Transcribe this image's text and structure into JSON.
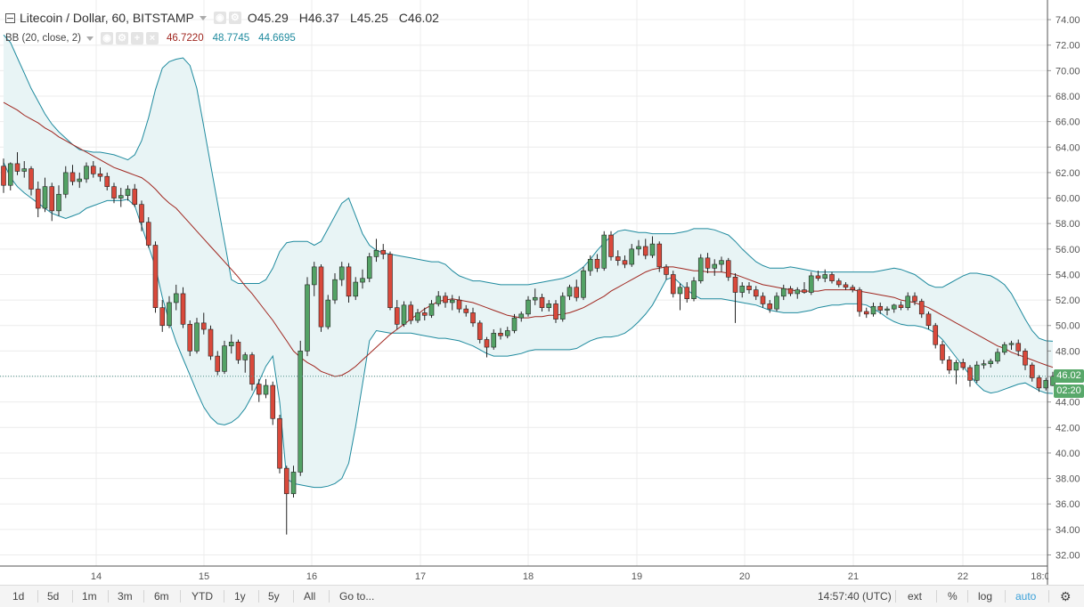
{
  "header": {
    "symbol_title": "Litecoin / Dollar, 60, BITSTAMP",
    "ohlc": [
      {
        "label": "O",
        "value": "45.29"
      },
      {
        "label": "H",
        "value": "46.37"
      },
      {
        "label": "L",
        "value": "45.25"
      },
      {
        "label": "C",
        "value": "46.02"
      }
    ],
    "indicator": {
      "name": "BB (20, close, 2)",
      "basis": "46.7220",
      "upper": "48.7745",
      "lower": "44.6695"
    }
  },
  "price_tag": {
    "last_price": "46.02",
    "countdown": "02:20"
  },
  "bottom_toolbar": {
    "ranges": [
      "1d",
      "5d",
      "1m",
      "3m",
      "6m",
      "YTD",
      "1y",
      "5y",
      "All"
    ],
    "goto": "Go to...",
    "time": "14:57:40 (UTC)",
    "ext": "ext",
    "percent": "%",
    "log": "log",
    "auto": "auto"
  },
  "colors": {
    "up": "#53a265",
    "down": "#d9493b",
    "band": "#1e8a9e",
    "basis": "#a0261f",
    "band_fill": "#e8f4f5",
    "grid": "#ececec",
    "last_line": "#4a8f86",
    "auto_active": "#3aa0d8"
  },
  "chart_data": {
    "type": "candlestick",
    "title": "Litecoin / Dollar, 60, BITSTAMP",
    "x_ticks": [
      "14",
      "15",
      "16",
      "17",
      "18",
      "19",
      "20",
      "21",
      "22",
      "18:0"
    ],
    "y_ticks": [
      "32.00",
      "34.00",
      "36.00",
      "38.00",
      "40.00",
      "42.00",
      "44.00",
      "46.00",
      "48.00",
      "50.00",
      "52.00",
      "54.00",
      "56.00",
      "58.00",
      "60.00",
      "62.00",
      "64.00",
      "66.00",
      "68.00",
      "70.00",
      "72.00",
      "74.00"
    ],
    "ylim": [
      31,
      74.5
    ],
    "last_price": 46.02,
    "candles": [
      [
        62.5,
        63.1,
        60.4,
        61.0
      ],
      [
        61.0,
        62.8,
        60.6,
        62.7
      ],
      [
        62.7,
        63.6,
        61.8,
        62.1
      ],
      [
        62.1,
        62.9,
        61.6,
        62.3
      ],
      [
        62.3,
        62.5,
        60.2,
        60.7
      ],
      [
        60.7,
        61.3,
        58.5,
        59.2
      ],
      [
        59.2,
        61.6,
        58.9,
        60.9
      ],
      [
        60.9,
        61.2,
        58.2,
        59.0
      ],
      [
        59.0,
        61.0,
        58.6,
        60.3
      ],
      [
        60.3,
        62.5,
        60.0,
        62.0
      ],
      [
        62.0,
        62.6,
        61.0,
        61.3
      ],
      [
        61.3,
        62.0,
        60.8,
        61.5
      ],
      [
        61.5,
        62.8,
        61.2,
        62.5
      ],
      [
        62.5,
        62.9,
        61.6,
        61.9
      ],
      [
        61.9,
        62.4,
        61.3,
        61.7
      ],
      [
        61.7,
        62.0,
        60.6,
        60.9
      ],
      [
        60.9,
        61.2,
        59.6,
        60.0
      ],
      [
        60.0,
        60.8,
        59.3,
        60.2
      ],
      [
        60.2,
        61.0,
        59.8,
        60.7
      ],
      [
        60.7,
        61.1,
        59.3,
        59.5
      ],
      [
        59.5,
        59.8,
        57.4,
        58.1
      ],
      [
        58.1,
        58.5,
        56.1,
        56.3
      ],
      [
        56.3,
        56.6,
        51.0,
        51.4
      ],
      [
        51.4,
        52.0,
        49.5,
        50.0
      ],
      [
        50.0,
        52.3,
        49.8,
        51.8
      ],
      [
        51.8,
        53.2,
        51.2,
        52.5
      ],
      [
        52.5,
        53.0,
        49.8,
        50.1
      ],
      [
        50.1,
        50.4,
        47.6,
        48.0
      ],
      [
        48.0,
        50.6,
        47.8,
        50.2
      ],
      [
        50.2,
        51.0,
        49.3,
        49.7
      ],
      [
        49.7,
        50.0,
        47.3,
        47.6
      ],
      [
        47.6,
        48.0,
        46.1,
        46.4
      ],
      [
        46.4,
        48.8,
        46.2,
        48.4
      ],
      [
        48.4,
        49.3,
        47.8,
        48.7
      ],
      [
        48.7,
        48.9,
        47.0,
        47.3
      ],
      [
        47.3,
        47.9,
        46.3,
        47.7
      ],
      [
        47.7,
        47.9,
        44.9,
        45.4
      ],
      [
        45.4,
        45.8,
        44.0,
        44.6
      ],
      [
        44.6,
        45.8,
        44.3,
        45.3
      ],
      [
        45.3,
        45.6,
        42.2,
        42.7
      ],
      [
        42.7,
        43.0,
        38.4,
        38.8
      ],
      [
        38.8,
        39.0,
        33.6,
        36.8
      ],
      [
        36.8,
        39.0,
        36.5,
        38.5
      ],
      [
        38.5,
        48.8,
        38.2,
        48.0
      ],
      [
        48.0,
        53.8,
        47.6,
        53.2
      ],
      [
        53.2,
        55.0,
        52.3,
        54.6
      ],
      [
        54.6,
        54.8,
        49.5,
        49.9
      ],
      [
        49.9,
        52.4,
        49.7,
        52.0
      ],
      [
        52.0,
        54.1,
        51.7,
        53.6
      ],
      [
        53.6,
        55.0,
        53.1,
        54.6
      ],
      [
        54.6,
        54.9,
        51.8,
        52.3
      ],
      [
        52.3,
        53.8,
        52.0,
        53.4
      ],
      [
        53.4,
        54.4,
        52.9,
        53.7
      ],
      [
        53.7,
        55.7,
        53.4,
        55.4
      ],
      [
        55.4,
        56.8,
        55.0,
        55.9
      ],
      [
        55.9,
        56.4,
        55.2,
        55.6
      ],
      [
        55.6,
        55.8,
        51.2,
        51.4
      ],
      [
        51.4,
        52.0,
        49.7,
        50.1
      ],
      [
        50.1,
        51.9,
        49.9,
        51.6
      ],
      [
        51.6,
        51.9,
        50.1,
        50.4
      ],
      [
        50.4,
        51.3,
        50.2,
        51.0
      ],
      [
        51.0,
        51.4,
        50.4,
        50.8
      ],
      [
        50.8,
        52.0,
        50.6,
        51.7
      ],
      [
        51.7,
        52.7,
        51.5,
        52.3
      ],
      [
        52.3,
        52.6,
        51.4,
        51.8
      ],
      [
        51.8,
        52.4,
        51.2,
        52.0
      ],
      [
        52.0,
        52.3,
        51.0,
        51.3
      ],
      [
        51.3,
        51.6,
        50.7,
        51.0
      ],
      [
        51.0,
        51.4,
        49.9,
        50.2
      ],
      [
        50.2,
        50.4,
        48.6,
        48.9
      ],
      [
        48.9,
        49.1,
        47.5,
        48.3
      ],
      [
        48.3,
        49.7,
        48.1,
        49.4
      ],
      [
        49.4,
        49.8,
        48.9,
        49.2
      ],
      [
        49.2,
        49.9,
        49.0,
        49.6
      ],
      [
        49.6,
        50.9,
        49.4,
        50.6
      ],
      [
        50.6,
        51.1,
        50.3,
        50.9
      ],
      [
        50.9,
        52.3,
        50.7,
        52.0
      ],
      [
        52.0,
        52.9,
        51.6,
        52.2
      ],
      [
        52.2,
        52.5,
        51.1,
        51.4
      ],
      [
        51.4,
        52.0,
        51.1,
        51.7
      ],
      [
        51.7,
        52.0,
        50.2,
        50.5
      ],
      [
        50.5,
        52.6,
        50.3,
        52.3
      ],
      [
        52.3,
        53.2,
        52.0,
        53.0
      ],
      [
        53.0,
        53.6,
        51.9,
        52.2
      ],
      [
        52.2,
        54.6,
        52.0,
        54.3
      ],
      [
        54.3,
        55.5,
        53.9,
        55.2
      ],
      [
        55.2,
        55.6,
        54.2,
        54.5
      ],
      [
        54.5,
        57.4,
        54.3,
        57.1
      ],
      [
        57.1,
        57.4,
        55.1,
        55.4
      ],
      [
        55.4,
        55.9,
        54.7,
        55.1
      ],
      [
        55.1,
        55.5,
        54.5,
        54.8
      ],
      [
        54.8,
        56.4,
        54.6,
        56.0
      ],
      [
        56.0,
        56.7,
        55.5,
        56.2
      ],
      [
        56.2,
        56.8,
        55.2,
        55.5
      ],
      [
        55.5,
        57.0,
        55.3,
        56.4
      ],
      [
        56.4,
        56.6,
        54.2,
        54.6
      ],
      [
        54.6,
        54.8,
        53.6,
        54.0
      ],
      [
        54.0,
        54.3,
        52.2,
        52.5
      ],
      [
        52.5,
        53.3,
        51.2,
        53.0
      ],
      [
        53.0,
        53.4,
        51.8,
        52.1
      ],
      [
        52.1,
        53.8,
        51.9,
        53.5
      ],
      [
        53.5,
        55.6,
        53.3,
        55.3
      ],
      [
        55.3,
        55.7,
        54.1,
        54.5
      ],
      [
        54.5,
        55.2,
        53.9,
        54.8
      ],
      [
        54.8,
        55.4,
        54.2,
        55.1
      ],
      [
        55.1,
        55.3,
        53.5,
        53.8
      ],
      [
        53.8,
        54.1,
        50.2,
        52.6
      ],
      [
        52.6,
        53.4,
        52.2,
        53.1
      ],
      [
        53.1,
        53.4,
        52.5,
        52.8
      ],
      [
        52.8,
        53.1,
        52.0,
        52.3
      ],
      [
        52.3,
        52.6,
        51.4,
        51.7
      ],
      [
        51.7,
        52.0,
        51.0,
        51.3
      ],
      [
        51.3,
        52.6,
        51.1,
        52.3
      ],
      [
        52.3,
        53.2,
        52.0,
        52.9
      ],
      [
        52.9,
        53.1,
        52.3,
        52.5
      ],
      [
        52.5,
        53.0,
        52.1,
        52.8
      ],
      [
        52.8,
        53.4,
        52.5,
        52.6
      ],
      [
        52.6,
        54.2,
        52.4,
        53.9
      ],
      [
        53.9,
        54.3,
        53.5,
        53.7
      ],
      [
        53.7,
        54.4,
        53.4,
        54.0
      ],
      [
        54.0,
        54.2,
        53.3,
        53.5
      ],
      [
        53.5,
        53.7,
        53.0,
        53.2
      ],
      [
        53.2,
        53.4,
        52.8,
        53.0
      ],
      [
        53.0,
        53.2,
        52.6,
        52.8
      ],
      [
        52.8,
        53.0,
        50.7,
        51.1
      ],
      [
        51.1,
        51.4,
        50.6,
        50.9
      ],
      [
        50.9,
        51.8,
        50.7,
        51.5
      ],
      [
        51.5,
        51.8,
        50.9,
        51.2
      ],
      [
        51.2,
        51.5,
        50.8,
        51.3
      ],
      [
        51.3,
        51.7,
        51.0,
        51.6
      ],
      [
        51.6,
        51.9,
        51.2,
        51.4
      ],
      [
        51.4,
        52.6,
        51.2,
        52.3
      ],
      [
        52.3,
        52.6,
        51.6,
        51.9
      ],
      [
        51.9,
        52.1,
        50.6,
        50.9
      ],
      [
        50.9,
        51.1,
        49.7,
        50.0
      ],
      [
        50.0,
        50.2,
        48.2,
        48.5
      ],
      [
        48.5,
        48.8,
        47.0,
        47.3
      ],
      [
        47.3,
        47.6,
        46.2,
        46.5
      ],
      [
        46.5,
        47.3,
        45.4,
        47.1
      ],
      [
        47.1,
        47.4,
        46.5,
        46.7
      ],
      [
        46.7,
        46.9,
        45.2,
        45.7
      ],
      [
        45.7,
        47.2,
        45.5,
        46.9
      ],
      [
        46.9,
        47.3,
        46.6,
        47.0
      ],
      [
        47.0,
        47.4,
        46.7,
        47.2
      ],
      [
        47.2,
        48.2,
        47.0,
        47.9
      ],
      [
        47.9,
        48.7,
        47.7,
        48.5
      ],
      [
        48.5,
        48.8,
        48.1,
        48.6
      ],
      [
        48.6,
        48.9,
        47.6,
        48.0
      ],
      [
        48.0,
        48.2,
        46.5,
        46.9
      ],
      [
        46.9,
        47.1,
        45.6,
        45.9
      ],
      [
        45.9,
        46.1,
        44.8,
        45.1
      ],
      [
        45.1,
        45.9,
        44.9,
        45.7
      ],
      [
        45.29,
        46.37,
        45.25,
        46.02
      ]
    ],
    "bollinger": {
      "basis": [
        67.5,
        67.2,
        66.9,
        66.5,
        66.2,
        65.9,
        65.5,
        65.2,
        64.8,
        64.5,
        64.2,
        63.9,
        63.6,
        63.3,
        63.0,
        62.7,
        62.4,
        62.2,
        62.0,
        61.8,
        61.6,
        61.2,
        60.7,
        60.1,
        59.6,
        59.2,
        58.6,
        58.0,
        57.4,
        56.8,
        56.2,
        55.6,
        55.0,
        54.4,
        53.8,
        53.1,
        52.5,
        51.8,
        51.1,
        50.4,
        49.6,
        48.8,
        48.0,
        47.5,
        47.1,
        46.8,
        46.4,
        46.2,
        46.0,
        46.1,
        46.4,
        46.8,
        47.3,
        47.8,
        48.3,
        48.8,
        49.3,
        49.7,
        50.1,
        50.5,
        50.9,
        51.3,
        51.6,
        51.9,
        52.0,
        52.1,
        52.0,
        51.9,
        51.8,
        51.6,
        51.4,
        51.2,
        51.0,
        50.8,
        50.7,
        50.6,
        50.6,
        50.7,
        50.7,
        50.8,
        50.8,
        50.9,
        51.0,
        51.2,
        51.4,
        51.7,
        52.0,
        52.3,
        52.7,
        53.0,
        53.3,
        53.6,
        53.9,
        54.2,
        54.4,
        54.5,
        54.6,
        54.6,
        54.5,
        54.4,
        54.3,
        54.3,
        54.2,
        54.2,
        54.2,
        54.1,
        54.0,
        53.8,
        53.6,
        53.4,
        53.2,
        53.1,
        53.0,
        52.9,
        52.8,
        52.7,
        52.7,
        52.7,
        52.7,
        52.8,
        52.8,
        52.8,
        52.8,
        52.8,
        52.7,
        52.6,
        52.5,
        52.4,
        52.3,
        52.2,
        52.0,
        51.9,
        51.8,
        51.6,
        51.4,
        51.1,
        50.8,
        50.5,
        50.2,
        49.9,
        49.6,
        49.3,
        49.0,
        48.7,
        48.4,
        48.2,
        47.9,
        47.7,
        47.5,
        47.3,
        47.1,
        46.9,
        46.72
      ],
      "upper": [
        72.8,
        72.2,
        71.0,
        69.8,
        68.6,
        67.6,
        66.6,
        65.8,
        65.2,
        64.7,
        64.2,
        63.8,
        63.7,
        63.6,
        63.6,
        63.5,
        63.4,
        63.2,
        63.0,
        63.4,
        64.5,
        66.3,
        68.5,
        70.2,
        70.7,
        70.9,
        71.0,
        70.4,
        68.6,
        65.6,
        62.6,
        59.6,
        56.6,
        53.6,
        53.3,
        53.3,
        53.3,
        53.3,
        53.6,
        54.5,
        55.8,
        56.5,
        56.6,
        56.6,
        56.6,
        56.3,
        56.6,
        57.6,
        58.6,
        59.6,
        60.0,
        58.6,
        57.2,
        56.3,
        55.9,
        55.7,
        55.6,
        55.5,
        55.4,
        55.3,
        55.2,
        55.1,
        55.0,
        55.0,
        54.8,
        54.3,
        53.9,
        53.7,
        53.5,
        53.5,
        53.4,
        53.3,
        53.2,
        53.2,
        53.2,
        53.2,
        53.2,
        53.3,
        53.4,
        53.5,
        53.6,
        53.7,
        53.9,
        54.2,
        54.6,
        55.2,
        55.9,
        56.5,
        57.0,
        57.4,
        57.5,
        57.4,
        57.3,
        57.3,
        57.2,
        57.2,
        57.2,
        57.2,
        57.3,
        57.4,
        57.6,
        57.6,
        57.6,
        57.5,
        57.3,
        57.1,
        56.6,
        56.0,
        55.5,
        55.0,
        54.7,
        54.5,
        54.5,
        54.5,
        54.6,
        54.5,
        54.4,
        54.3,
        54.2,
        54.2,
        54.2,
        54.2,
        54.2,
        54.2,
        54.2,
        54.2,
        54.2,
        54.3,
        54.4,
        54.5,
        54.4,
        54.2,
        54.0,
        53.6,
        53.2,
        53.0,
        53.0,
        53.3,
        53.6,
        53.9,
        54.1,
        54.1,
        54.0,
        53.9,
        53.6,
        53.2,
        52.5,
        51.5,
        50.5,
        49.6,
        49.0,
        48.8,
        48.77
      ],
      "lower": [
        62.8,
        61.6,
        60.9,
        60.4,
        60.0,
        59.6,
        59.2,
        58.8,
        58.6,
        58.4,
        58.6,
        58.8,
        59.2,
        59.4,
        59.6,
        59.8,
        59.8,
        59.8,
        59.9,
        59.4,
        57.8,
        56.2,
        54.6,
        52.2,
        50.3,
        48.7,
        47.4,
        46.1,
        44.8,
        43.6,
        42.8,
        42.3,
        42.2,
        42.4,
        42.8,
        43.5,
        44.5,
        45.6,
        46.8,
        47.6,
        44.0,
        38.0,
        37.6,
        37.5,
        37.4,
        37.3,
        37.3,
        37.4,
        37.6,
        38.0,
        39.2,
        42.1,
        45.4,
        48.8,
        49.6,
        49.5,
        49.4,
        49.4,
        49.4,
        49.4,
        49.3,
        49.2,
        49.1,
        49.0,
        49.0,
        48.9,
        48.8,
        48.6,
        48.4,
        48.1,
        47.8,
        47.6,
        47.6,
        47.6,
        47.7,
        47.8,
        48.0,
        48.1,
        48.1,
        48.1,
        48.1,
        48.1,
        48.1,
        48.2,
        48.5,
        48.8,
        49.0,
        49.1,
        49.1,
        49.2,
        49.4,
        49.8,
        50.3,
        50.9,
        51.6,
        52.6,
        53.6,
        53.8,
        53.3,
        52.8,
        52.4,
        52.1,
        52.1,
        52.1,
        52.1,
        52.0,
        51.9,
        51.8,
        51.7,
        51.6,
        51.4,
        51.2,
        51.1,
        51.0,
        51.0,
        51.0,
        51.1,
        51.2,
        51.4,
        51.5,
        51.6,
        51.6,
        51.7,
        51.7,
        51.7,
        51.6,
        51.3,
        51.0,
        50.6,
        50.3,
        50.1,
        50.0,
        50.0,
        49.9,
        49.7,
        49.4,
        48.9,
        48.2,
        47.5,
        46.8,
        46.1,
        45.4,
        44.9,
        44.7,
        44.8,
        45.0,
        45.2,
        45.4,
        45.5,
        45.2,
        44.9,
        44.7,
        44.67
      ]
    }
  }
}
